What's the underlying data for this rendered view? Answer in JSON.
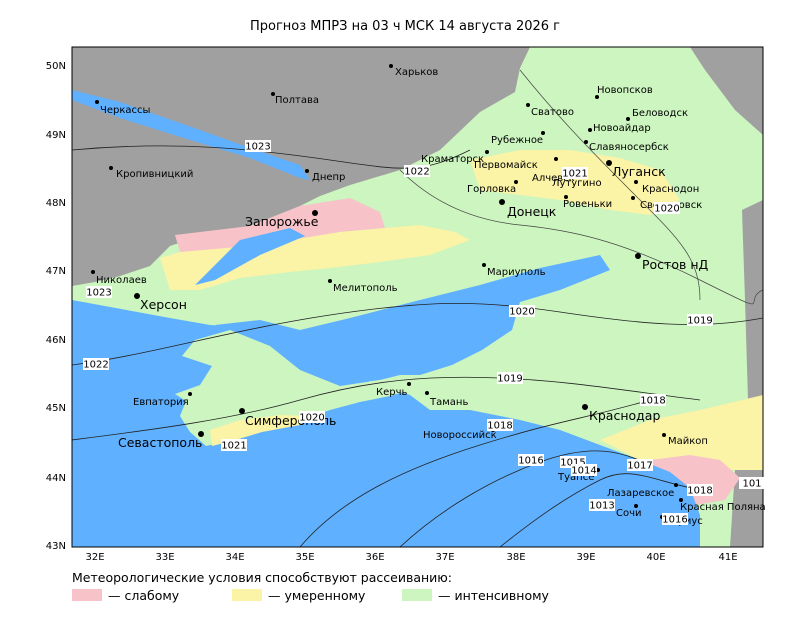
{
  "title": "Прогноз МПРЗ на 03 ч МСК 14 августа 2026 г",
  "grid_labels": {
    "lat": [
      "50N",
      "49N",
      "48N",
      "47N",
      "46N",
      "45N",
      "44N",
      "43N"
    ],
    "lon": [
      "32E",
      "33E",
      "34E",
      "35E",
      "36E",
      "37E",
      "38E",
      "39E",
      "40E",
      "41E"
    ]
  },
  "cities": [
    "Харьков",
    "Полтава",
    "Черкассы",
    "Кропивницкий",
    "Днепр",
    "Запорожье",
    "Николаев",
    "Херсон",
    "Мелитополь",
    "Евпатория",
    "Симферополь",
    "Севастополь",
    "Керчь",
    "Тамань",
    "Новороссийск",
    "Краснодар",
    "Майкоп",
    "Туапсе",
    "Лазаревское",
    "Красная Поляна",
    "Сочи",
    "Сириус",
    "Мариуполь",
    "Донецк",
    "Горловка",
    "Краматорск",
    "Первомайск",
    "Алчевск",
    "Луганск",
    "Рубежное",
    "Сватово",
    "Новопсков",
    "Беловодск",
    "Новоайдар",
    "Славяносербск",
    "Лутугино",
    "Ровеньки",
    "Краснодон",
    "Свердловск",
    "Ростов нД"
  ],
  "isobar_labels": [
    1023,
    1022,
    1023,
    1022,
    1020,
    1019,
    1019,
    1018,
    1018,
    1016,
    1015,
    1014,
    1017,
    1018,
    1013,
    1021,
    1020,
    1021,
    1020,
    1016,
    101
  ],
  "legend": {
    "title": "Метеорологические условия способствуют рассеиванию:",
    "items": [
      {
        "label": "— слабому",
        "color": "#f7c3c9"
      },
      {
        "label": "— умеренному",
        "color": "#fbf3a6"
      },
      {
        "label": "— интенсивному",
        "color": "#ccf5c0"
      }
    ]
  }
}
